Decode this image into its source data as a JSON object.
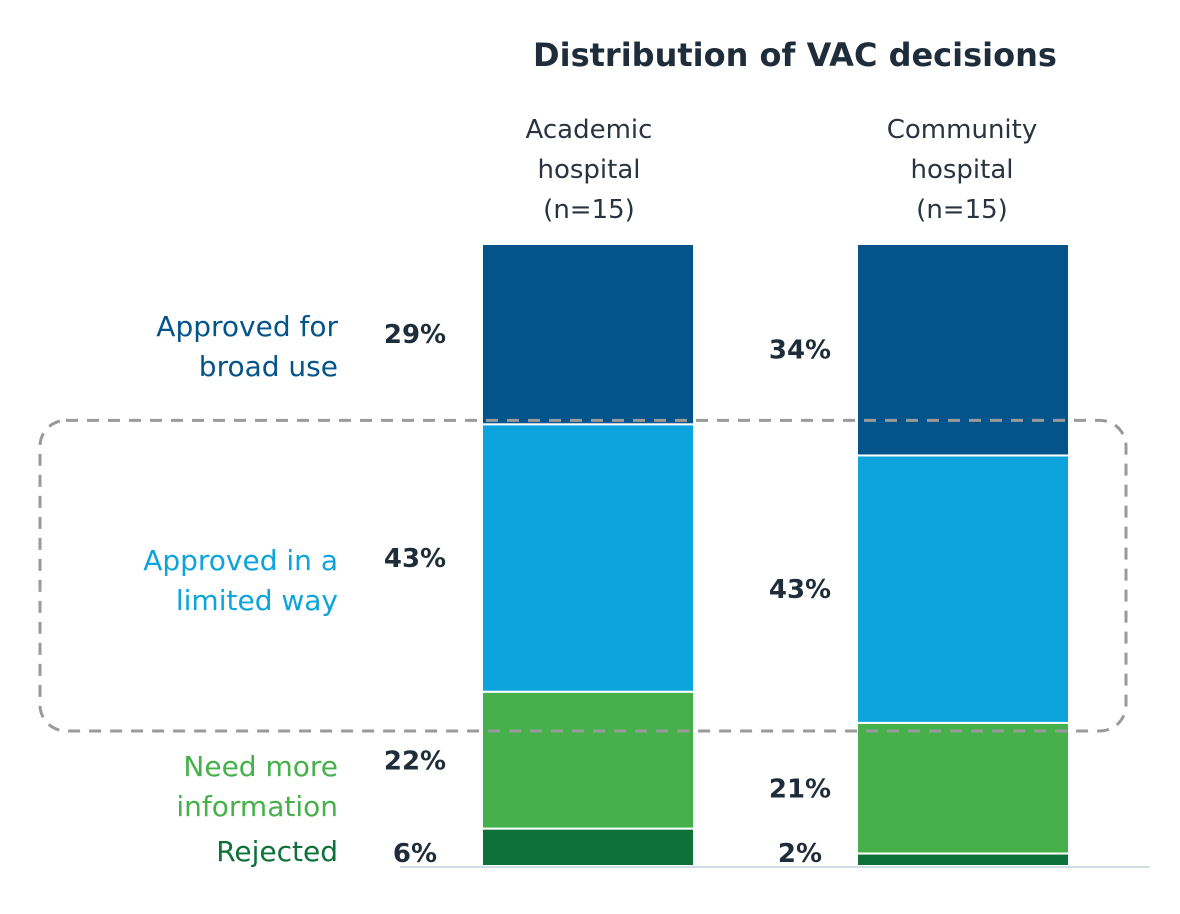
{
  "chart_data": {
    "type": "bar",
    "stacked": true,
    "normalized": true,
    "title": "Distribution of VAC decisions",
    "categories": [
      [
        "Academic",
        "hospital",
        "(n=15)"
      ],
      [
        "Community",
        "hospital",
        "(n=15)"
      ]
    ],
    "series": [
      {
        "name": [
          "Approved for",
          "broad use"
        ],
        "values": [
          29,
          34
        ],
        "labels": [
          "29%",
          "34%"
        ],
        "color": "#03548b",
        "label_color": "#03548b"
      },
      {
        "name": [
          "Approved in a",
          "limited way"
        ],
        "values": [
          43,
          43
        ],
        "labels": [
          "43%",
          "43%"
        ],
        "color": "#0da4dd",
        "label_color": "#0da4dd"
      },
      {
        "name": [
          "Need more",
          "information"
        ],
        "values": [
          22,
          21
        ],
        "labels": [
          "22%",
          "21%"
        ],
        "color": "#46b04a",
        "label_color": "#46b04a"
      },
      {
        "name": [
          "Rejected"
        ],
        "values": [
          6,
          2
        ],
        "labels": [
          "6%",
          "2%"
        ],
        "color": "#0e713a",
        "label_color": "#0e713a"
      }
    ],
    "highlight": {
      "series": "Approved in a limited way",
      "style": "dashed-rounded-box"
    },
    "ylim": [
      0,
      100
    ],
    "legend": "left"
  }
}
